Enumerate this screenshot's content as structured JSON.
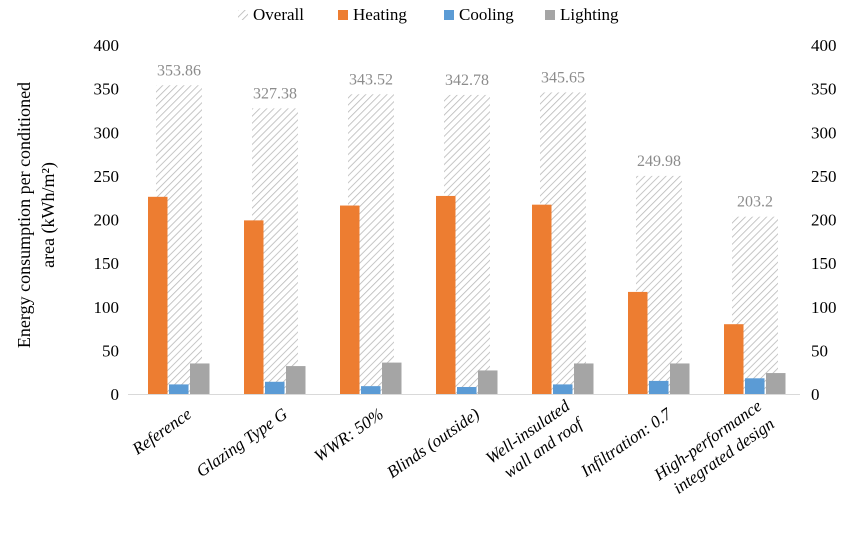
{
  "chart_data": {
    "type": "bar",
    "title": "",
    "ylabel_lines": [
      "Energy consumption per conditioned",
      "area (kWh/m²)"
    ],
    "xlabel": "",
    "ylim": [
      0,
      400
    ],
    "yticks": [
      0,
      50,
      100,
      150,
      200,
      250,
      300,
      350,
      400
    ],
    "secondary_axis": true,
    "legend_position": "top",
    "categories": [
      [
        "Reference"
      ],
      [
        "Glazing Type G"
      ],
      [
        "WWR: 50%"
      ],
      [
        "Blinds (outside)"
      ],
      [
        "Well-insulated",
        "wall and roof"
      ],
      [
        "Infiltration: 0.7"
      ],
      [
        "High-performance",
        "integrated design"
      ]
    ],
    "series": [
      {
        "name": "Overall",
        "color": "#d0d0d0",
        "pattern": "diagonal-hatch",
        "values": [
          353.86,
          327.38,
          343.52,
          342.78,
          345.65,
          249.98,
          203.2
        ],
        "labels": [
          "353.86",
          "327.38",
          "343.52",
          "342.78",
          "345.65",
          "249.98",
          "203.2"
        ]
      },
      {
        "name": "Heating",
        "color": "#ed7d31",
        "values": [
          226,
          199,
          216,
          227,
          217,
          117,
          80
        ]
      },
      {
        "name": "Cooling",
        "color": "#5b9bd5",
        "values": [
          11,
          14,
          9,
          8,
          11,
          15,
          18
        ]
      },
      {
        "name": "Lighting",
        "color": "#a5a5a5",
        "values": [
          35,
          32,
          36,
          27,
          35,
          35,
          24
        ]
      }
    ]
  }
}
